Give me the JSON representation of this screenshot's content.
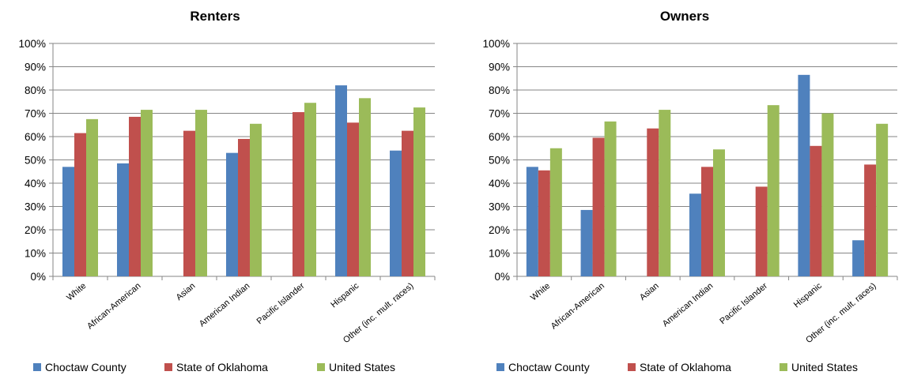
{
  "colors": {
    "choctaw": "#4F81BD",
    "oklahoma": "#C0504D",
    "us": "#9BBB59",
    "grid": "#868686"
  },
  "chart_data": [
    {
      "type": "bar",
      "title": "Renters",
      "xlabel": "",
      "ylabel": "",
      "ylim": [
        0,
        100
      ],
      "yticks": [
        "0%",
        "10%",
        "20%",
        "30%",
        "40%",
        "50%",
        "60%",
        "70%",
        "80%",
        "90%",
        "100%"
      ],
      "grid": true,
      "legend_position": "bottom",
      "categories": [
        "White",
        "African-American",
        "Asian",
        "American Indian",
        "Pacific Islander",
        "Hispanic",
        "Other (inc. mult. races)"
      ],
      "series": [
        {
          "name": "Choctaw County",
          "color": "#4F81BD",
          "values": [
            47,
            48.5,
            0,
            53,
            0,
            82,
            54
          ]
        },
        {
          "name": "State of Oklahoma",
          "color": "#C0504D",
          "values": [
            61.5,
            68.5,
            62.5,
            59,
            70.5,
            66,
            62.5
          ]
        },
        {
          "name": "United States",
          "color": "#9BBB59",
          "values": [
            67.5,
            71.5,
            71.5,
            65.5,
            74.5,
            76.5,
            72.5
          ]
        }
      ]
    },
    {
      "type": "bar",
      "title": "Owners",
      "xlabel": "",
      "ylabel": "",
      "ylim": [
        0,
        100
      ],
      "yticks": [
        "0%",
        "10%",
        "20%",
        "30%",
        "40%",
        "50%",
        "60%",
        "70%",
        "80%",
        "90%",
        "100%"
      ],
      "grid": true,
      "legend_position": "bottom",
      "categories": [
        "White",
        "African-American",
        "Asian",
        "American Indian",
        "Pacific Islander",
        "Hispanic",
        "Other (inc. mult. races)"
      ],
      "series": [
        {
          "name": "Choctaw County",
          "color": "#4F81BD",
          "values": [
            47,
            28.5,
            0,
            35.5,
            0,
            86.5,
            15.5
          ]
        },
        {
          "name": "State of Oklahoma",
          "color": "#C0504D",
          "values": [
            45.5,
            59.5,
            63.5,
            47,
            38.5,
            56,
            48
          ]
        },
        {
          "name": "United States",
          "color": "#9BBB59",
          "values": [
            55,
            66.5,
            71.5,
            54.5,
            73.5,
            70,
            65.5
          ]
        }
      ]
    }
  ]
}
